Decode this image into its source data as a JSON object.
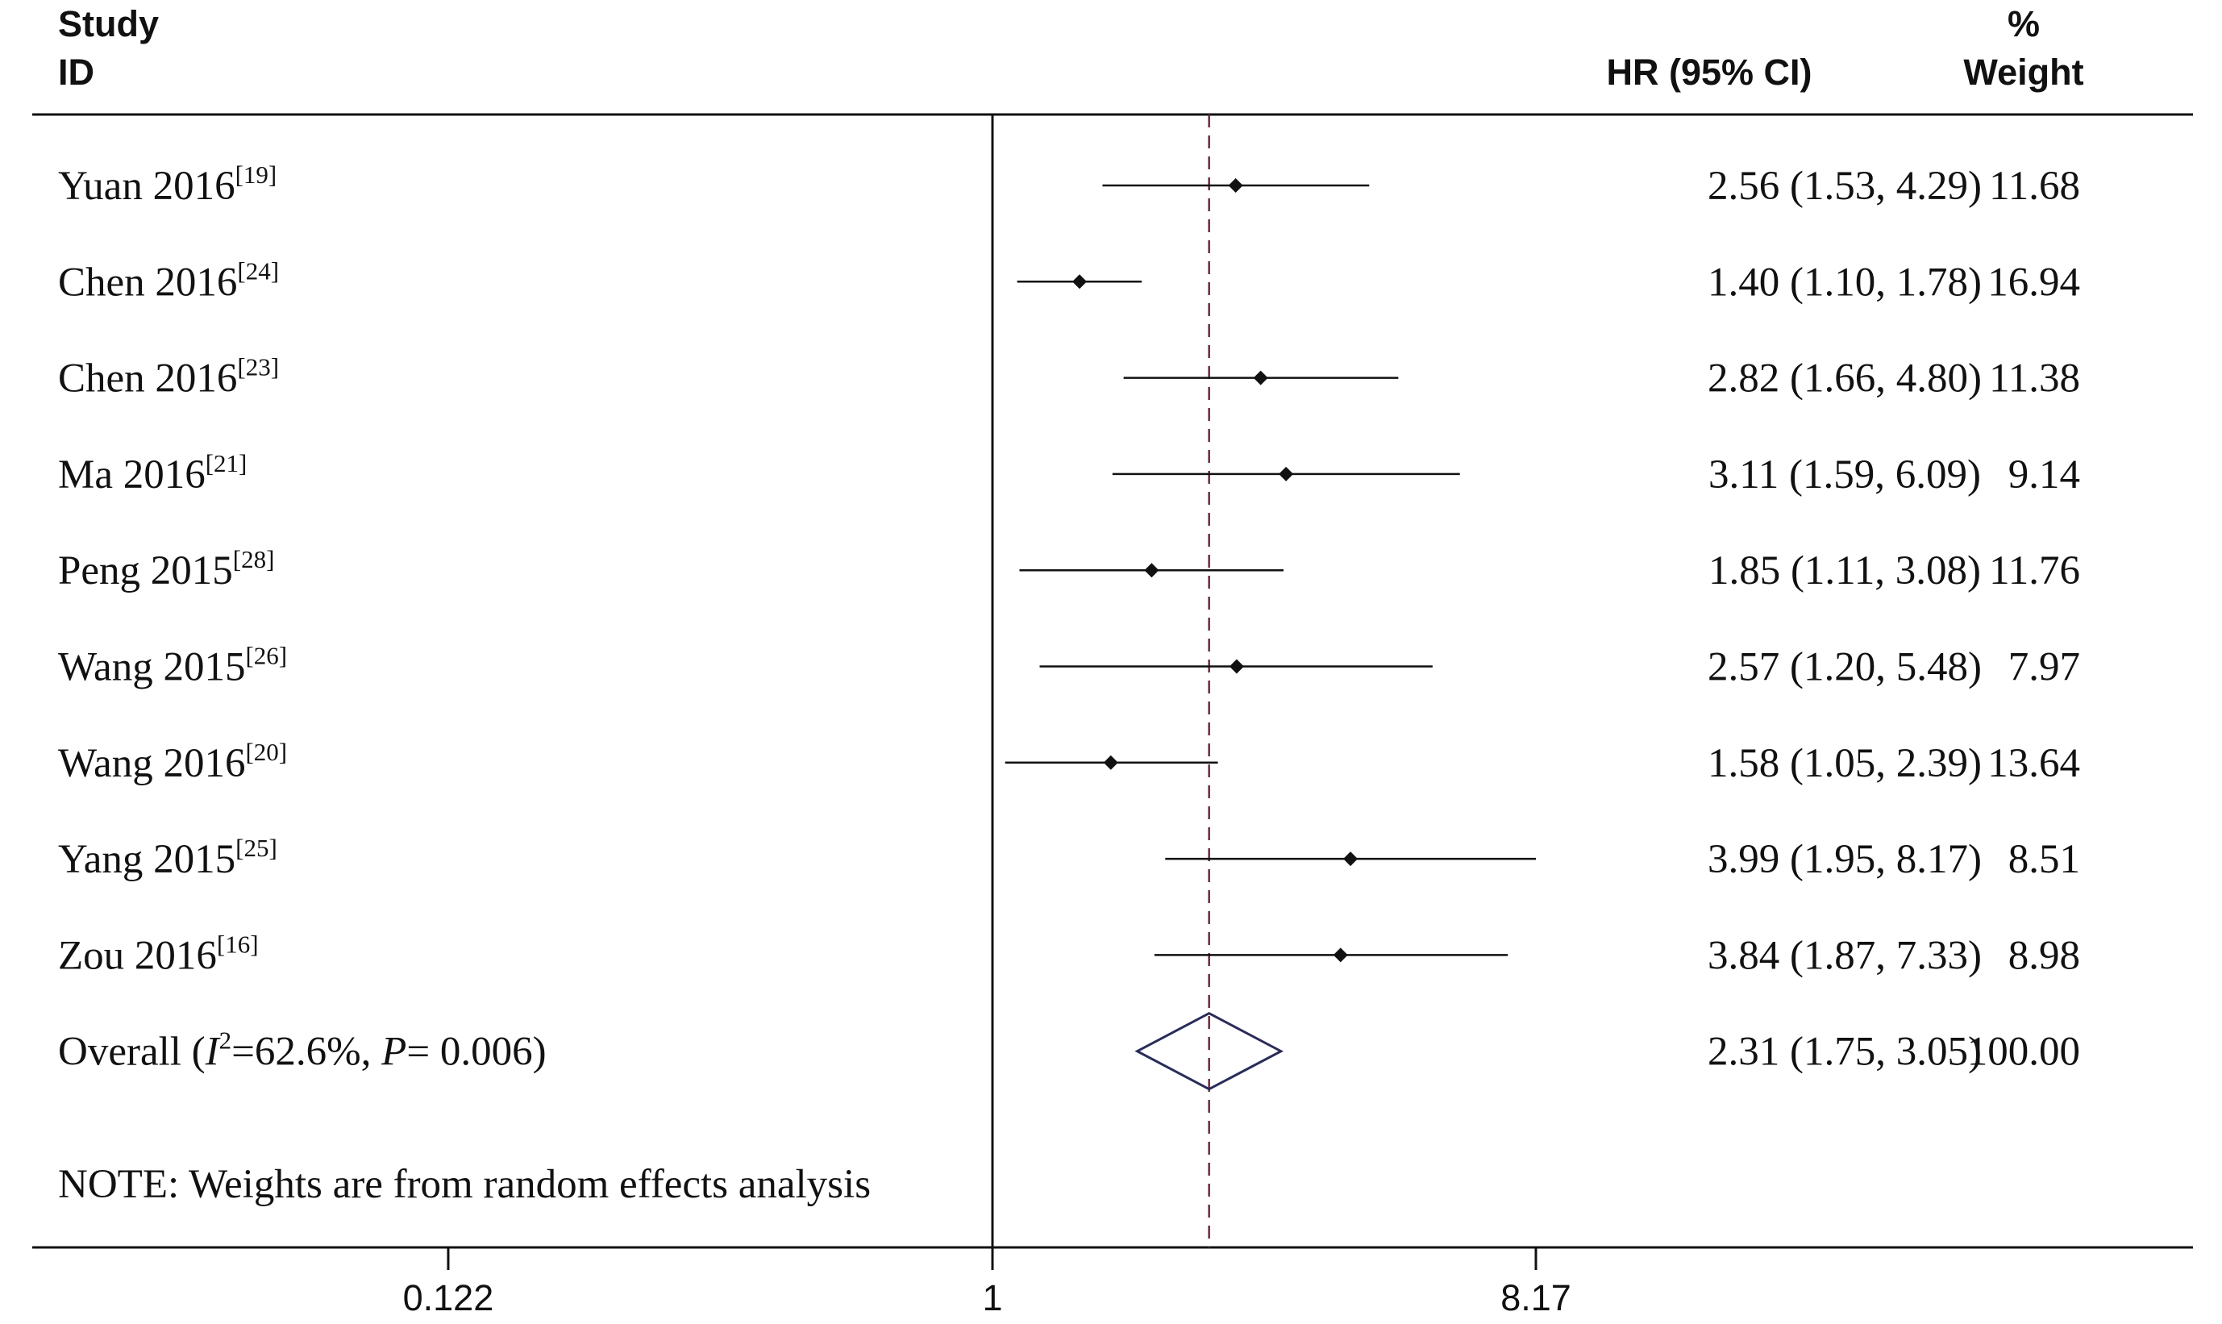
{
  "headers": {
    "study_line1": "Study",
    "study_line2": "ID",
    "hr": "HR (95% CI)",
    "weight_line1": "%",
    "weight_line2": "Weight"
  },
  "note": "NOTE: Weights are from random effects analysis",
  "chart_data": {
    "type": "forest",
    "x_scale": "log",
    "xlim": [
      0.122,
      8.17
    ],
    "x_ticks": [
      {
        "value": 0.122,
        "label": "0.122"
      },
      {
        "value": 1,
        "label": "1"
      },
      {
        "value": 8.17,
        "label": "8.17"
      }
    ],
    "null_line": 1,
    "overall_line": 2.31,
    "studies": [
      {
        "label": "Yuan 2016",
        "ref": "[19]",
        "hr": 2.56,
        "lo": 1.53,
        "hi": 4.29,
        "ci_text": "2.56 (1.53, 4.29)",
        "weight": "11.68"
      },
      {
        "label": "Chen 2016",
        "ref": "[24]",
        "hr": 1.4,
        "lo": 1.1,
        "hi": 1.78,
        "ci_text": "1.40 (1.10, 1.78)",
        "weight": "16.94"
      },
      {
        "label": "Chen 2016",
        "ref": "[23]",
        "hr": 2.82,
        "lo": 1.66,
        "hi": 4.8,
        "ci_text": "2.82 (1.66, 4.80)",
        "weight": "11.38"
      },
      {
        "label": "Ma 2016",
        "ref": "[21]",
        "hr": 3.11,
        "lo": 1.59,
        "hi": 6.09,
        "ci_text": "3.11 (1.59, 6.09)",
        "weight": "9.14"
      },
      {
        "label": "Peng 2015",
        "ref": "[28]",
        "hr": 1.85,
        "lo": 1.11,
        "hi": 3.08,
        "ci_text": "1.85 (1.11, 3.08)",
        "weight": "11.76"
      },
      {
        "label": "Wang 2015",
        "ref": "[26]",
        "hr": 2.57,
        "lo": 1.2,
        "hi": 5.48,
        "ci_text": "2.57 (1.20, 5.48)",
        "weight": "7.97"
      },
      {
        "label": "Wang 2016",
        "ref": "[20]",
        "hr": 1.58,
        "lo": 1.05,
        "hi": 2.39,
        "ci_text": "1.58 (1.05, 2.39)",
        "weight": "13.64"
      },
      {
        "label": "Yang 2015",
        "ref": "[25]",
        "hr": 3.99,
        "lo": 1.95,
        "hi": 8.17,
        "ci_text": "3.99 (1.95, 8.17)",
        "weight": "8.51"
      },
      {
        "label": "Zou 2016",
        "ref": "[16]",
        "hr": 3.84,
        "lo": 1.87,
        "hi": 7.33,
        "ci_text": "3.84 (1.87, 7.33)",
        "weight": "8.98"
      }
    ],
    "overall": {
      "label_prefix": "Overall  (",
      "i_letter": "I",
      "i_sup": "2",
      "label_mid": "=62.6%, ",
      "p_letter": "P",
      "label_end": "= 0.006)",
      "hr": 2.31,
      "lo": 1.75,
      "hi": 3.05,
      "ci_text": "2.31 (1.75, 3.05)",
      "weight": "100.00"
    },
    "colors": {
      "line": "#111111",
      "overall_dashed": "#6b2a3d",
      "diamond": "#2a2c5a"
    }
  }
}
